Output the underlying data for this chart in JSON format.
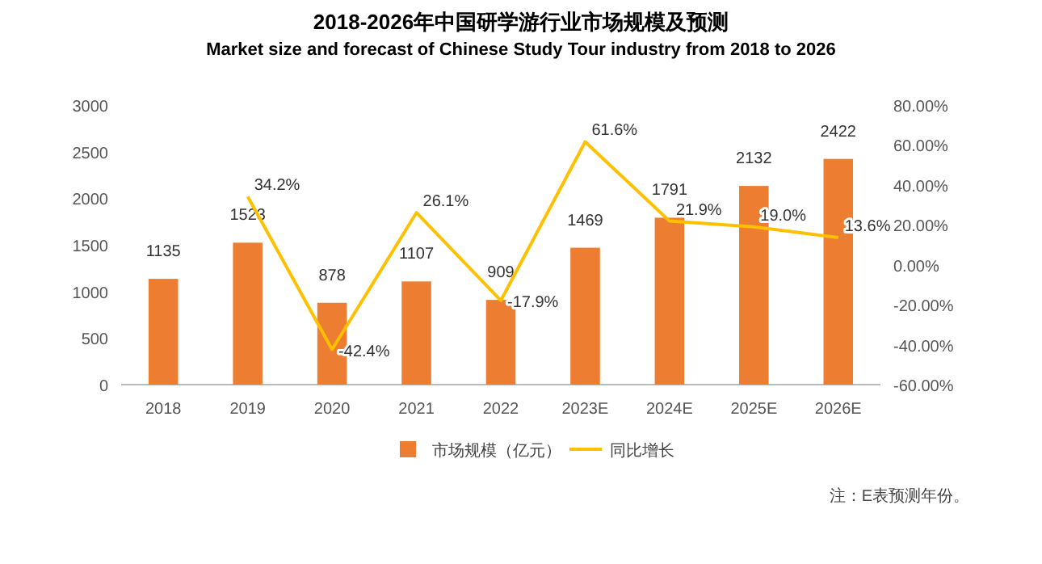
{
  "chart_data": {
    "type": "bar",
    "title": "2018-2026年中国研学游行业市场规模及预测",
    "subtitle": "Market size and forecast of Chinese Study Tour industry from 2018 to 2026",
    "categories": [
      "2018",
      "2019",
      "2020",
      "2021",
      "2022",
      "2023E",
      "2024E",
      "2025E",
      "2026E"
    ],
    "series": [
      {
        "name": "市场规模（亿元）",
        "color": "#ed7d31",
        "values": [
          1135,
          1523,
          878,
          1107,
          909,
          1469,
          1791,
          2132,
          2422
        ],
        "value_labels": [
          "1135",
          "1523",
          "878",
          "1107",
          "909",
          "1469",
          "1791",
          "2132",
          "2422"
        ]
      },
      {
        "name": "同比增长",
        "type": "line",
        "axis": "y2",
        "color": "#ffc000",
        "values": [
          null,
          34.2,
          -42.4,
          26.1,
          -17.9,
          61.6,
          21.9,
          19.0,
          13.6
        ],
        "value_labels": [
          null,
          "34.2%",
          "-42.4%",
          "26.1%",
          "-17.9%",
          "61.6%",
          "21.9%",
          "19.0%",
          "13.6%"
        ]
      }
    ],
    "ylim": [
      0,
      3000
    ],
    "yticks": [
      0,
      500,
      1000,
      1500,
      2000,
      2500,
      3000
    ],
    "y2lim": [
      -60,
      80
    ],
    "y2ticks": [
      {
        "value": -60,
        "label": "-60.00%"
      },
      {
        "value": -40,
        "label": "-40.00%"
      },
      {
        "value": -20,
        "label": "-20.00%"
      },
      {
        "value": 0,
        "label": "0.00%"
      },
      {
        "value": 20,
        "label": "20.00%"
      },
      {
        "value": 40,
        "label": "40.00%"
      },
      {
        "value": 60,
        "label": "60.00%"
      },
      {
        "value": 80,
        "label": "80.00%"
      }
    ],
    "legend": "bottom",
    "marker": "none",
    "grid": false,
    "annotations": [
      "注：E表预测年份。"
    ]
  }
}
